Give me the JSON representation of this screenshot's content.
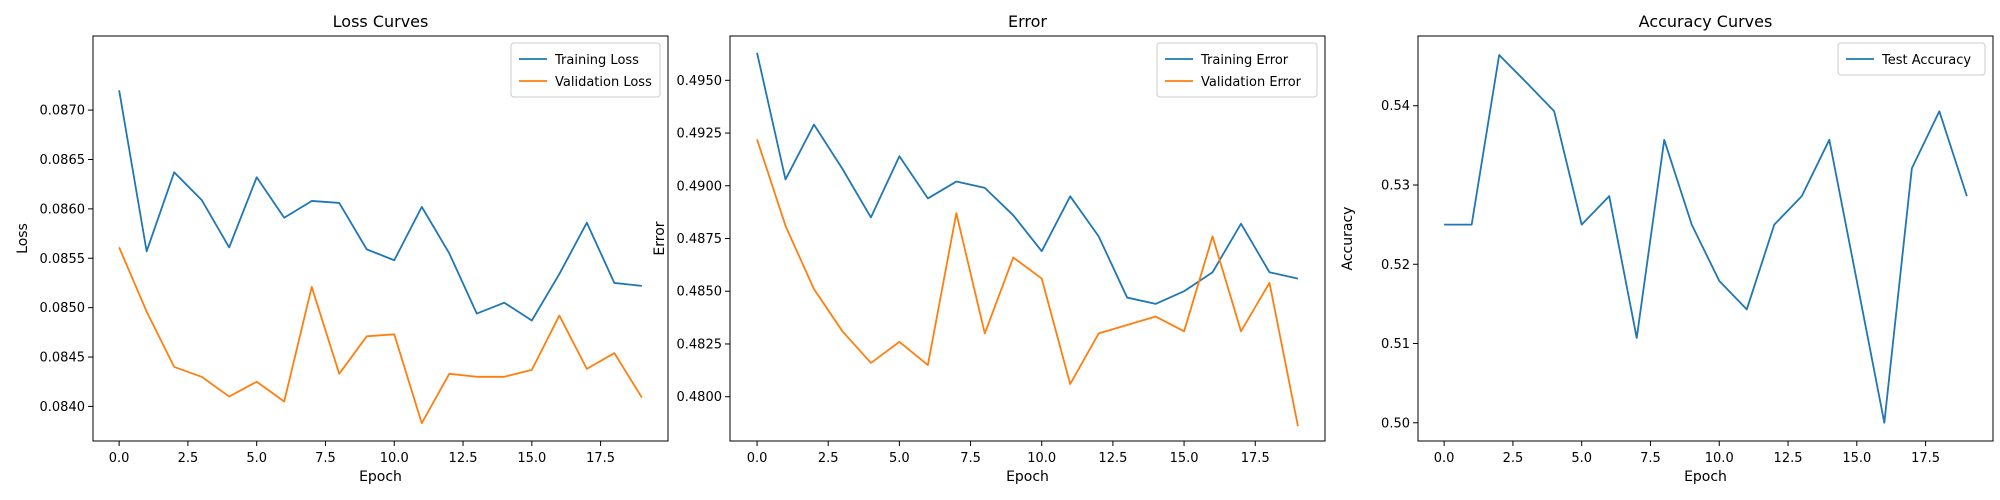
{
  "chart_data": [
    {
      "type": "line",
      "title": "Loss Curves",
      "xlabel": "Epoch",
      "ylabel": "Loss",
      "xlim": [
        -0.95,
        19.95
      ],
      "ylim": [
        0.08365,
        0.08775
      ],
      "xticks": [
        0,
        2.5,
        5,
        7.5,
        10,
        12.5,
        15,
        17.5
      ],
      "xtick_labels": [
        "0.0",
        "2.5",
        "5.0",
        "7.5",
        "10.0",
        "12.5",
        "15.0",
        "17.5"
      ],
      "yticks": [
        0.084,
        0.0845,
        0.085,
        0.0855,
        0.086,
        0.0865,
        0.087
      ],
      "ytick_labels": [
        "0.0840",
        "0.0845",
        "0.0850",
        "0.0855",
        "0.0860",
        "0.0865",
        "0.0870"
      ],
      "grid": false,
      "legend_position": "top-right",
      "x": [
        0,
        1,
        2,
        3,
        4,
        5,
        6,
        7,
        8,
        9,
        10,
        11,
        12,
        13,
        14,
        15,
        16,
        17,
        18,
        19
      ],
      "series": [
        {
          "name": "Training Loss",
          "color": "#1f77b4",
          "values": [
            0.0872,
            0.08557,
            0.08637,
            0.08609,
            0.08561,
            0.08632,
            0.08591,
            0.08608,
            0.08606,
            0.08559,
            0.08548,
            0.08602,
            0.08555,
            0.08494,
            0.08505,
            0.08487,
            0.08534,
            0.08586,
            0.08525,
            0.08522
          ]
        },
        {
          "name": "Validation Loss",
          "color": "#ff7f0e",
          "values": [
            0.08561,
            0.08496,
            0.0844,
            0.0843,
            0.0841,
            0.08425,
            0.08405,
            0.08521,
            0.08433,
            0.08471,
            0.08473,
            0.08383,
            0.08433,
            0.0843,
            0.0843,
            0.08437,
            0.08492,
            0.08438,
            0.08454,
            0.08409
          ]
        }
      ]
    },
    {
      "type": "line",
      "title": "Error",
      "xlabel": "Epoch",
      "ylabel": "Error",
      "xlim": [
        -0.95,
        19.95
      ],
      "ylim": [
        0.4779,
        0.4971
      ],
      "xticks": [
        0,
        2.5,
        5,
        7.5,
        10,
        12.5,
        15,
        17.5
      ],
      "xtick_labels": [
        "0.0",
        "2.5",
        "5.0",
        "7.5",
        "10.0",
        "12.5",
        "15.0",
        "17.5"
      ],
      "yticks": [
        0.48,
        0.4825,
        0.485,
        0.4875,
        0.49,
        0.4925,
        0.495
      ],
      "ytick_labels": [
        "0.4800",
        "0.4825",
        "0.4850",
        "0.4875",
        "0.4900",
        "0.4925",
        "0.4950"
      ],
      "grid": false,
      "legend_position": "top-right",
      "x": [
        0,
        1,
        2,
        3,
        4,
        5,
        6,
        7,
        8,
        9,
        10,
        11,
        12,
        13,
        14,
        15,
        16,
        17,
        18,
        19
      ],
      "series": [
        {
          "name": "Training Error",
          "color": "#1f77b4",
          "values": [
            0.4963,
            0.4903,
            0.4929,
            0.4908,
            0.4885,
            0.4914,
            0.4894,
            0.4902,
            0.4899,
            0.4886,
            0.4869,
            0.4895,
            0.4876,
            0.4847,
            0.4844,
            0.485,
            0.4859,
            0.4882,
            0.4859,
            0.4856
          ]
        },
        {
          "name": "Validation Error",
          "color": "#ff7f0e",
          "values": [
            0.4922,
            0.4881,
            0.4851,
            0.4831,
            0.4816,
            0.4826,
            0.4815,
            0.4887,
            0.483,
            0.4866,
            0.4856,
            0.4806,
            0.483,
            0.4834,
            0.4838,
            0.4831,
            0.4876,
            0.4831,
            0.4854,
            0.4786
          ]
        }
      ]
    },
    {
      "type": "line",
      "title": "Accuracy Curves",
      "xlabel": "Epoch",
      "ylabel": "Accuracy",
      "xlim": [
        -0.95,
        19.95
      ],
      "ylim": [
        0.4977,
        0.5488
      ],
      "xticks": [
        0,
        2.5,
        5,
        7.5,
        10,
        12.5,
        15,
        17.5
      ],
      "xtick_labels": [
        "0.0",
        "2.5",
        "5.0",
        "7.5",
        "10.0",
        "12.5",
        "15.0",
        "17.5"
      ],
      "yticks": [
        0.5,
        0.51,
        0.52,
        0.53,
        0.54
      ],
      "ytick_labels": [
        "0.50",
        "0.51",
        "0.52",
        "0.53",
        "0.54"
      ],
      "grid": false,
      "legend_position": "top-right",
      "x": [
        0,
        1,
        2,
        3,
        4,
        5,
        6,
        7,
        8,
        9,
        10,
        11,
        12,
        13,
        14,
        15,
        16,
        17,
        18,
        19
      ],
      "series": [
        {
          "name": "Test Accuracy",
          "color": "#1f77b4",
          "values": [
            0.525,
            0.525,
            0.5464,
            0.5429,
            0.5393,
            0.525,
            0.5286,
            0.5107,
            0.5357,
            0.525,
            0.5179,
            0.5143,
            0.525,
            0.5286,
            0.5357,
            0.5179,
            0.5,
            0.5321,
            0.5393,
            0.5286
          ]
        }
      ]
    }
  ]
}
